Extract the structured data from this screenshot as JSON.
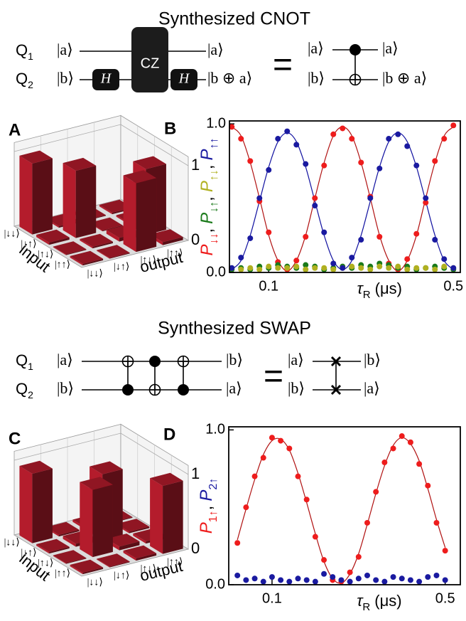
{
  "cnot": {
    "title": "Synthesized CNOT",
    "qubits": [
      {
        "name": "Q",
        "sub": "1"
      },
      {
        "name": "Q",
        "sub": "2"
      }
    ],
    "inputs": [
      "|a⟩",
      "|b⟩"
    ],
    "gates": [
      "H",
      "CZ",
      "H"
    ],
    "outputs": [
      "|a⟩",
      "|b ⊕ a⟩"
    ],
    "equals": "=",
    "equiv_inputs": [
      "|a⟩",
      "|b⟩"
    ],
    "equiv_outputs": [
      "|a⟩",
      "|b ⊕ a⟩"
    ]
  },
  "swap": {
    "title": "Synthesized SWAP",
    "qubits": [
      {
        "name": "Q",
        "sub": "1"
      },
      {
        "name": "Q",
        "sub": "2"
      }
    ],
    "inputs": [
      "|a⟩",
      "|b⟩"
    ],
    "outputs": [
      "|b⟩",
      "|a⟩"
    ],
    "equals": "=",
    "equiv_inputs": [
      "|a⟩",
      "|b⟩"
    ],
    "equiv_outputs": [
      "|b⟩",
      "|a⟩"
    ]
  },
  "bars": [
    {
      "label": "A",
      "input_label": "input",
      "output_label": "output",
      "color": "#b41c2c",
      "states": [
        "|↓↓⟩",
        "|↓↑⟩",
        "|↑↓⟩",
        "|↑↑⟩"
      ],
      "zlim": [
        0,
        1
      ],
      "zticks": [
        0,
        1
      ],
      "values": [
        [
          0.95,
          0.02,
          0.01,
          0.02
        ],
        [
          0.03,
          0.9,
          0.01,
          0.02
        ],
        [
          0.01,
          0.02,
          0.05,
          0.88
        ],
        [
          0.02,
          0.01,
          0.92,
          0.04
        ]
      ]
    },
    {
      "label": "C",
      "input_label": "input",
      "output_label": "output",
      "color": "#b41c2c",
      "states": [
        "|↓↓⟩",
        "|↓↑⟩",
        "|↑↓⟩",
        "|↑↑⟩"
      ],
      "zlim": [
        0,
        1
      ],
      "zticks": [
        0,
        1
      ],
      "values": [
        [
          0.93,
          0.02,
          0.03,
          0.01
        ],
        [
          0.02,
          0.04,
          0.88,
          0.02
        ],
        [
          0.01,
          0.9,
          0.05,
          0.03
        ],
        [
          0.02,
          0.01,
          0.03,
          0.91
        ]
      ]
    }
  ],
  "chart_data": [
    {
      "type": "scatter",
      "label": "B",
      "x": [
        0.02,
        0.04,
        0.06,
        0.08,
        0.1,
        0.12,
        0.14,
        0.16,
        0.18,
        0.2,
        0.22,
        0.24,
        0.26,
        0.28,
        0.3,
        0.32,
        0.34,
        0.36,
        0.38,
        0.4,
        0.42,
        0.44,
        0.46,
        0.48,
        0.5
      ],
      "xlim": [
        0.015,
        0.515
      ],
      "xticks": [
        0.1,
        0.5
      ],
      "ylim": [
        0,
        1.02
      ],
      "yticks": [
        {
          "value": 0,
          "label": "0.0"
        },
        {
          "value": 1,
          "label": "1.0"
        }
      ],
      "x_label": {
        "symbol": "τ",
        "sub": "R",
        "unit": "(μs)"
      },
      "legend_separator": ",",
      "series": [
        {
          "name": "P",
          "sub": "↓↓",
          "color": "#ee1c1c",
          "values": [
            0.98,
            0.9,
            0.75,
            0.48,
            0.27,
            0.07,
            0.02,
            0.08,
            0.24,
            0.5,
            0.72,
            0.93,
            0.97,
            0.9,
            0.74,
            0.51,
            0.24,
            0.06,
            0.02,
            0.09,
            0.26,
            0.47,
            0.75,
            0.9,
            0.99
          ]
        },
        {
          "name": "P",
          "sub": "↓↑",
          "color": "#1a7a1a",
          "values": [
            0.02,
            0.03,
            0.02,
            0.04,
            0.03,
            0.05,
            0.04,
            0.03,
            0.05,
            0.04,
            0.02,
            0.03,
            0.04,
            0.03,
            0.05,
            0.04,
            0.06,
            0.05,
            0.03,
            0.04,
            0.02,
            0.03,
            0.04,
            0.03,
            0.02
          ]
        },
        {
          "name": "P",
          "sub": "↑↓",
          "color": "#b0b020",
          "values": [
            0.03,
            0.02,
            0.03,
            0.02,
            0.04,
            0.03,
            0.03,
            0.04,
            0.02,
            0.03,
            0.03,
            0.02,
            0.03,
            0.04,
            0.03,
            0.02,
            0.04,
            0.03,
            0.04,
            0.02,
            0.03,
            0.03,
            0.02,
            0.04,
            0.03
          ]
        },
        {
          "name": "P",
          "sub": "↑↑",
          "color": "#1a1aa0",
          "values": [
            0.03,
            0.1,
            0.23,
            0.5,
            0.69,
            0.9,
            0.95,
            0.86,
            0.73,
            0.45,
            0.27,
            0.06,
            0.03,
            0.1,
            0.22,
            0.5,
            0.7,
            0.9,
            0.93,
            0.85,
            0.72,
            0.5,
            0.22,
            0.09,
            0.03
          ]
        }
      ],
      "fits": [
        {
          "color": "#b01010",
          "values": [
            0.98,
            0.92,
            0.74,
            0.5,
            0.25,
            0.08,
            0.01,
            0.08,
            0.25,
            0.5,
            0.74,
            0.92,
            0.98,
            0.92,
            0.74,
            0.5,
            0.25,
            0.08,
            0.01,
            0.08,
            0.25,
            0.5,
            0.74,
            0.92,
            0.98
          ]
        },
        {
          "color": "#1010a0",
          "values": [
            0.02,
            0.08,
            0.25,
            0.48,
            0.71,
            0.88,
            0.94,
            0.88,
            0.71,
            0.48,
            0.25,
            0.08,
            0.02,
            0.08,
            0.25,
            0.48,
            0.71,
            0.88,
            0.94,
            0.88,
            0.71,
            0.48,
            0.25,
            0.08,
            0.02
          ]
        }
      ]
    },
    {
      "type": "scatter",
      "label": "D",
      "x": [
        0.02,
        0.04,
        0.06,
        0.08,
        0.1,
        0.12,
        0.14,
        0.16,
        0.18,
        0.2,
        0.22,
        0.24,
        0.26,
        0.28,
        0.3,
        0.32,
        0.34,
        0.36,
        0.38,
        0.4,
        0.42,
        0.44,
        0.46,
        0.48,
        0.5
      ],
      "xlim": [
        0,
        0.535
      ],
      "xticks": [
        0.1,
        0.5
      ],
      "ylim": [
        0,
        1.02
      ],
      "yticks": [
        {
          "value": 0,
          "label": "0.0"
        },
        {
          "value": 1,
          "label": "1.0"
        }
      ],
      "x_label": {
        "symbol": "τ",
        "sub": "R",
        "unit": "(μs)"
      },
      "legend_separator": ",",
      "series": [
        {
          "name": "P",
          "sub": "1↑",
          "color": "#ee1c1c",
          "values": [
            0.27,
            0.5,
            0.7,
            0.82,
            0.95,
            0.93,
            0.88,
            0.7,
            0.55,
            0.31,
            0.16,
            0.03,
            0.02,
            0.08,
            0.18,
            0.4,
            0.6,
            0.79,
            0.88,
            0.96,
            0.92,
            0.78,
            0.64,
            0.4,
            0.22
          ]
        },
        {
          "name": "P",
          "sub": "2↑",
          "color": "#1a1aa0",
          "values": [
            0.06,
            0.03,
            0.04,
            0.02,
            0.05,
            0.03,
            0.02,
            0.04,
            0.03,
            0.02,
            0.07,
            0.05,
            0.03,
            0.02,
            0.04,
            0.06,
            0.03,
            0.02,
            0.05,
            0.04,
            0.03,
            0.02,
            0.05,
            0.06,
            0.03
          ]
        }
      ],
      "fits": [
        {
          "color": "#b01010",
          "values": [
            0.29,
            0.49,
            0.68,
            0.84,
            0.93,
            0.94,
            0.87,
            0.72,
            0.53,
            0.33,
            0.15,
            0.04,
            0.01,
            0.07,
            0.2,
            0.39,
            0.59,
            0.77,
            0.9,
            0.95,
            0.91,
            0.8,
            0.62,
            0.42,
            0.24
          ]
        }
      ]
    }
  ]
}
